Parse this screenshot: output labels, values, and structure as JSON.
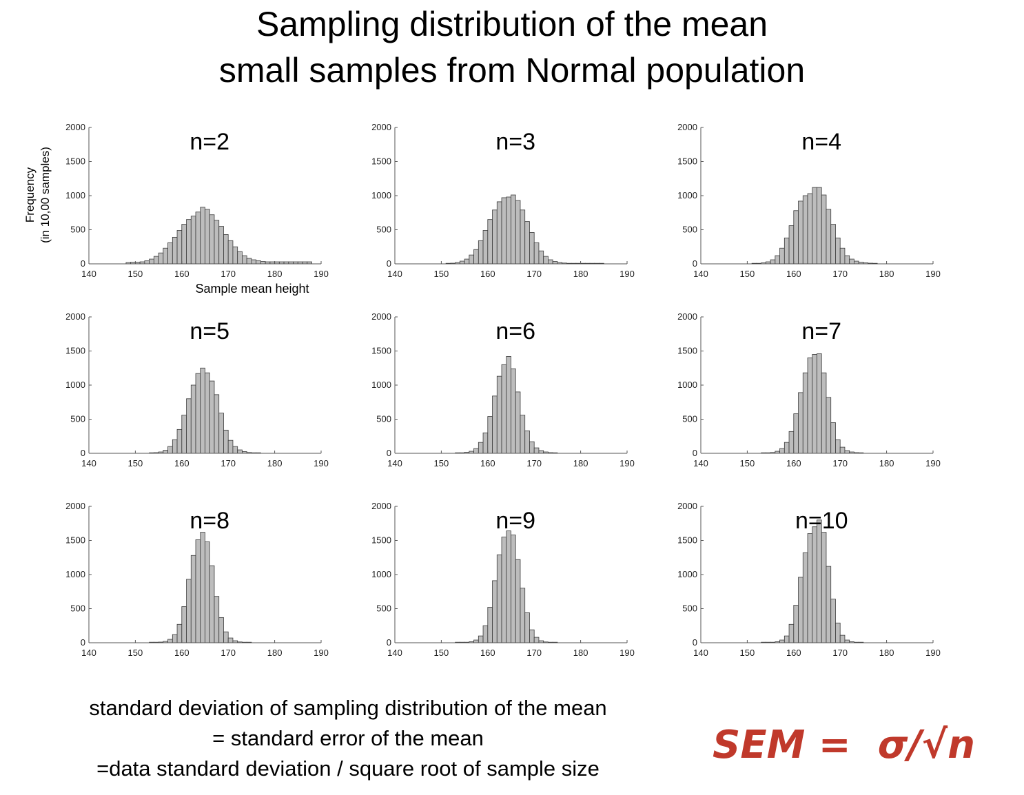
{
  "title": {
    "line1": "Sampling distribution of the mean",
    "line2": "small samples from Normal population"
  },
  "axis_labels": {
    "ylabel_line1": "Frequency",
    "ylabel_line2": "(in 10,00 samples)",
    "xlabel": "Sample mean height"
  },
  "caption": {
    "line1": "standard deviation of sampling distribution of the mean",
    "line2": "= standard error of the mean",
    "line3": "=data standard deviation / square root of sample size"
  },
  "formula": {
    "text": "SEM =  σ/√n",
    "color": "#c0392b"
  },
  "colors": {
    "bar_fill": "#bdbdbd",
    "bar_stroke": "#3a3a3a",
    "axis": "#555555"
  },
  "chart_data": [
    {
      "type": "bar",
      "title": "n=2",
      "bins_start": 148,
      "bin_width": 1,
      "xlim": [
        140,
        190
      ],
      "ylim": [
        0,
        2000
      ],
      "xticks": [
        140,
        150,
        160,
        170,
        180,
        190
      ],
      "yticks": [
        0,
        500,
        1000,
        1500,
        2000
      ],
      "values": [
        20,
        25,
        25,
        30,
        45,
        70,
        110,
        160,
        230,
        310,
        390,
        490,
        580,
        650,
        700,
        760,
        830,
        800,
        720,
        640,
        550,
        430,
        340,
        250,
        180,
        120,
        80,
        60,
        45,
        35,
        30,
        30,
        30,
        30,
        30,
        30,
        30,
        30,
        30,
        30
      ]
    },
    {
      "type": "bar",
      "title": "n=3",
      "bins_start": 151,
      "bin_width": 1,
      "xlim": [
        140,
        190
      ],
      "ylim": [
        0,
        2000
      ],
      "xticks": [
        140,
        150,
        160,
        170,
        180,
        190
      ],
      "yticks": [
        0,
        500,
        1000,
        1500,
        2000
      ],
      "values": [
        5,
        10,
        20,
        40,
        70,
        130,
        210,
        340,
        490,
        650,
        790,
        910,
        970,
        980,
        1010,
        930,
        790,
        620,
        460,
        310,
        190,
        110,
        60,
        35,
        20,
        12,
        8,
        5,
        3,
        2,
        2,
        2,
        2,
        2
      ]
    },
    {
      "type": "bar",
      "title": "n=4",
      "bins_start": 151,
      "bin_width": 1,
      "xlim": [
        140,
        190
      ],
      "ylim": [
        0,
        2000
      ],
      "xticks": [
        140,
        150,
        160,
        170,
        180,
        190
      ],
      "yticks": [
        0,
        500,
        1000,
        1500,
        2000
      ],
      "values": [
        5,
        8,
        15,
        30,
        60,
        120,
        230,
        380,
        560,
        780,
        920,
        1000,
        1030,
        1120,
        1120,
        1010,
        800,
        580,
        380,
        230,
        120,
        70,
        40,
        25,
        15,
        10,
        8
      ]
    },
    {
      "type": "bar",
      "title": "n=5",
      "bins_start": 153,
      "bin_width": 1,
      "xlim": [
        140,
        190
      ],
      "ylim": [
        0,
        2000
      ],
      "xticks": [
        140,
        150,
        160,
        170,
        180,
        190
      ],
      "yticks": [
        0,
        500,
        1000,
        1500,
        2000
      ],
      "values": [
        5,
        10,
        20,
        45,
        100,
        200,
        350,
        560,
        800,
        1000,
        1170,
        1250,
        1180,
        1060,
        860,
        590,
        340,
        190,
        100,
        50,
        25,
        12,
        6,
        3
      ]
    },
    {
      "type": "bar",
      "title": "n=6",
      "bins_start": 153,
      "bin_width": 1,
      "xlim": [
        140,
        190
      ],
      "ylim": [
        0,
        2000
      ],
      "xticks": [
        140,
        150,
        160,
        170,
        180,
        190
      ],
      "yticks": [
        0,
        500,
        1000,
        1500,
        2000
      ],
      "values": [
        5,
        8,
        15,
        30,
        70,
        160,
        300,
        540,
        840,
        1130,
        1300,
        1420,
        1240,
        900,
        560,
        330,
        170,
        80,
        40,
        20,
        10,
        5
      ]
    },
    {
      "type": "bar",
      "title": "n=7",
      "bins_start": 153,
      "bin_width": 1,
      "xlim": [
        140,
        190
      ],
      "ylim": [
        0,
        2000
      ],
      "xticks": [
        140,
        150,
        160,
        170,
        180,
        190
      ],
      "yticks": [
        0,
        500,
        1000,
        1500,
        2000
      ],
      "values": [
        4,
        6,
        12,
        30,
        70,
        160,
        320,
        580,
        890,
        1180,
        1400,
        1450,
        1460,
        1180,
        820,
        450,
        200,
        90,
        40,
        20,
        10,
        5
      ]
    },
    {
      "type": "bar",
      "title": "n=8",
      "bins_start": 153,
      "bin_width": 1,
      "xlim": [
        140,
        190
      ],
      "ylim": [
        0,
        2000
      ],
      "xticks": [
        140,
        150,
        160,
        170,
        180,
        190
      ],
      "yticks": [
        0,
        500,
        1000,
        1500,
        2000
      ],
      "values": [
        3,
        5,
        10,
        20,
        50,
        120,
        270,
        530,
        930,
        1280,
        1510,
        1620,
        1480,
        1130,
        680,
        370,
        160,
        70,
        30,
        12,
        6,
        3
      ]
    },
    {
      "type": "bar",
      "title": "n=9",
      "bins_start": 153,
      "bin_width": 1,
      "xlim": [
        140,
        190
      ],
      "ylim": [
        0,
        2000
      ],
      "xticks": [
        140,
        150,
        160,
        170,
        180,
        190
      ],
      "yticks": [
        0,
        500,
        1000,
        1500,
        2000
      ],
      "values": [
        3,
        5,
        8,
        15,
        40,
        100,
        250,
        520,
        910,
        1290,
        1550,
        1640,
        1580,
        1220,
        800,
        440,
        190,
        80,
        30,
        12,
        6,
        3
      ]
    },
    {
      "type": "bar",
      "title": "n=10",
      "bins_start": 153,
      "bin_width": 1,
      "xlim": [
        140,
        190
      ],
      "ylim": [
        0,
        2000
      ],
      "xticks": [
        140,
        150,
        160,
        170,
        180,
        190
      ],
      "yticks": [
        0,
        500,
        1000,
        1500,
        2000
      ],
      "values": [
        3,
        5,
        8,
        15,
        40,
        100,
        270,
        550,
        960,
        1320,
        1600,
        1700,
        1800,
        1620,
        1120,
        640,
        290,
        110,
        40,
        15,
        6,
        3
      ]
    }
  ]
}
